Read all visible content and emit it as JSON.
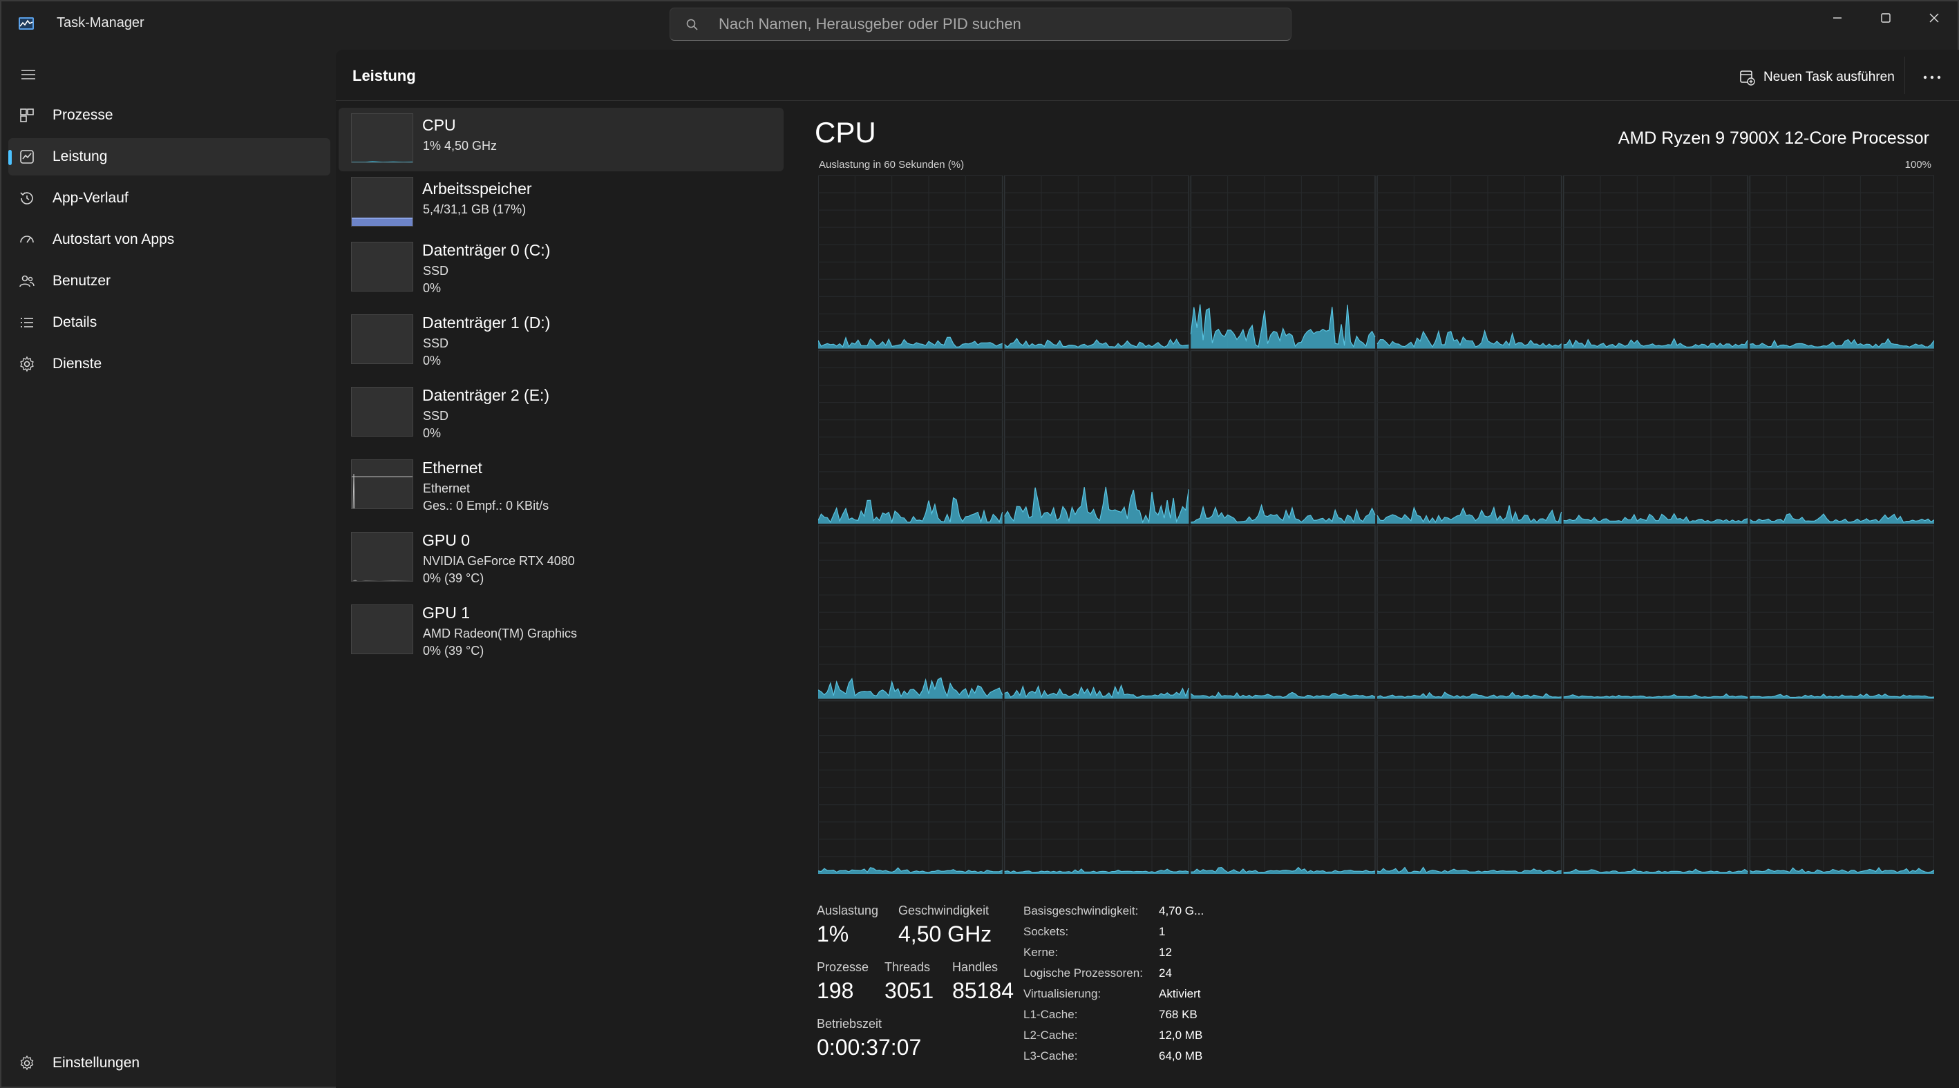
{
  "window": {
    "title": "Task-Manager",
    "search_placeholder": "Nach Namen, Herausgeber oder PID suchen"
  },
  "sidebar": {
    "items": [
      {
        "label": "Prozesse",
        "icon": "processes-icon"
      },
      {
        "label": "Leistung",
        "icon": "performance-icon",
        "active": true
      },
      {
        "label": "App-Verlauf",
        "icon": "history-icon"
      },
      {
        "label": "Autostart von Apps",
        "icon": "startup-icon"
      },
      {
        "label": "Benutzer",
        "icon": "users-icon"
      },
      {
        "label": "Details",
        "icon": "details-icon"
      },
      {
        "label": "Dienste",
        "icon": "services-icon"
      }
    ],
    "settings_label": "Einstellungen"
  },
  "header": {
    "title": "Leistung",
    "run_task_label": "Neuen Task ausführen"
  },
  "devices": [
    {
      "name": "CPU",
      "lines": [
        "1%  4,50 GHz"
      ],
      "utilization": 0.01
    },
    {
      "name": "Arbeitsspeicher",
      "lines": [
        "5,4/31,1 GB (17%)"
      ],
      "utilization": 0.17
    },
    {
      "name": "Datenträger 0 (C:)",
      "lines": [
        "SSD",
        "0%"
      ],
      "utilization": 0
    },
    {
      "name": "Datenträger 1 (D:)",
      "lines": [
        "SSD",
        "0%"
      ],
      "utilization": 0
    },
    {
      "name": "Datenträger 2 (E:)",
      "lines": [
        "SSD",
        "0%"
      ],
      "utilization": 0
    },
    {
      "name": "Ethernet",
      "lines": [
        "Ethernet",
        "Ges.: 0  Empf.: 0 KBit/s"
      ],
      "utilization": 0
    },
    {
      "name": "GPU 0",
      "lines": [
        "NVIDIA GeForce RTX 4080",
        "0%  (39 °C)"
      ],
      "utilization": 0
    },
    {
      "name": "GPU 1",
      "lines": [
        "AMD Radeon(TM) Graphics",
        "0%  (39 °C)"
      ],
      "utilization": 0
    }
  ],
  "detail": {
    "title": "CPU",
    "model": "AMD Ryzen 9 7900X 12-Core Processor",
    "graph_label": "Auslastung in 60 Sekunden (%)",
    "graph_max": "100%",
    "graph_color": "#3fa7c4",
    "logical_processors_shown": 24,
    "core_peak_levels": [
      0.06,
      0.05,
      0.25,
      0.1,
      0.05,
      0.05,
      0.15,
      0.22,
      0.1,
      0.1,
      0.05,
      0.05,
      0.12,
      0.07,
      0.03,
      0.03,
      0.02,
      0.02,
      0.03,
      0.02,
      0.03,
      0.03,
      0.02,
      0.03
    ]
  },
  "stats": {
    "auslastung_label": "Auslastung",
    "auslastung": "1%",
    "geschwindigkeit_label": "Geschwindigkeit",
    "geschwindigkeit": "4,50 GHz",
    "prozesse_label": "Prozesse",
    "prozesse": "198",
    "threads_label": "Threads",
    "threads": "3051",
    "handles_label": "Handles",
    "handles": "85184",
    "betriebszeit_label": "Betriebszeit",
    "betriebszeit": "0:00:37:07",
    "info": [
      {
        "label": "Basisgeschwindigkeit:",
        "value": "4,70 G..."
      },
      {
        "label": "Sockets:",
        "value": "1"
      },
      {
        "label": "Kerne:",
        "value": "12"
      },
      {
        "label": "Logische Prozessoren:",
        "value": "24"
      },
      {
        "label": "Virtualisierung:",
        "value": "Aktiviert"
      },
      {
        "label": "L1-Cache:",
        "value": "768 KB"
      },
      {
        "label": "L2-Cache:",
        "value": "12,0 MB"
      },
      {
        "label": "L3-Cache:",
        "value": "64,0 MB"
      }
    ]
  }
}
